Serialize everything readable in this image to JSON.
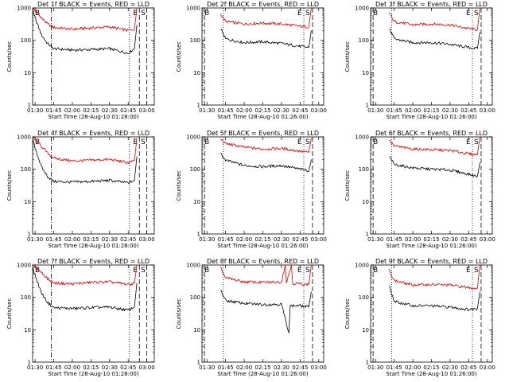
{
  "colors": {
    "events": "#000000",
    "lld": "#e00000"
  },
  "chart_data": [
    {
      "type": "line",
      "title": "Det 1f BLACK = Events, RED = LLD",
      "ylabel": "Counts/sec",
      "xlabel": "Start Time (28-Aug-10 01:28:00)",
      "x_ticks": [
        "01:30",
        "01:45",
        "02:00",
        "02:15",
        "02:30",
        "02:45",
        "03:00"
      ],
      "y_ticks": [
        "1",
        "10",
        "100",
        "1000"
      ],
      "x_range": [
        "01:28",
        "03:06"
      ],
      "y_range": [
        1,
        1000
      ],
      "y_scale": "log",
      "markers": [
        "B",
        "E",
        "S"
      ],
      "vlines": [
        {
          "t": "01:43",
          "style": "dash-dot"
        },
        {
          "t": "02:46",
          "style": "dotted"
        },
        {
          "t": "02:54",
          "style": "dashed"
        },
        {
          "t": "03:00",
          "style": "dashed"
        }
      ],
      "series": [
        {
          "key": "lld",
          "x": [
            "01:28",
            "01:35",
            "01:40",
            "01:45",
            "02:00",
            "02:15",
            "02:30",
            "02:45",
            "02:50",
            "02:52"
          ],
          "y": [
            1000,
            500,
            320,
            250,
            220,
            240,
            260,
            200,
            220,
            1000
          ]
        },
        {
          "key": "events",
          "x": [
            "01:28",
            "01:35",
            "01:40",
            "01:45",
            "02:00",
            "02:15",
            "02:30",
            "02:45",
            "02:50",
            "02:52"
          ],
          "y": [
            800,
            150,
            80,
            55,
            50,
            52,
            55,
            40,
            55,
            300
          ]
        }
      ]
    },
    {
      "type": "line",
      "title": "Det 2f BLACK = Events, RED = LLD",
      "ylabel": "Counts/sec",
      "xlabel": "Start Time (28-Aug-10 01:26:00)",
      "x_ticks": [
        "01:30",
        "01:45",
        "02:00",
        "02:15",
        "02:30",
        "02:45",
        "03:00"
      ],
      "y_ticks": [
        "1",
        "10",
        "100",
        "1000"
      ],
      "x_range": [
        "01:26",
        "03:04"
      ],
      "y_range": [
        1,
        1000
      ],
      "y_scale": "log",
      "markers": [
        "B",
        "E",
        "S"
      ],
      "vlines": [
        {
          "t": "01:28",
          "style": "dashed"
        },
        {
          "t": "01:43",
          "style": "dotted"
        },
        {
          "t": "02:48",
          "style": "dotted"
        },
        {
          "t": "02:55",
          "style": "dashed"
        }
      ],
      "series": [
        {
          "key": "lld",
          "x": [
            "01:41",
            "01:45",
            "02:00",
            "02:15",
            "02:30",
            "02:45",
            "02:52",
            "02:54"
          ],
          "y": [
            650,
            380,
            320,
            340,
            320,
            270,
            260,
            1000
          ]
        },
        {
          "key": "events",
          "x": [
            "01:41",
            "01:45",
            "02:00",
            "02:15",
            "02:30",
            "02:45",
            "02:52",
            "02:54"
          ],
          "y": [
            230,
            110,
            85,
            90,
            80,
            65,
            60,
            200
          ]
        }
      ]
    },
    {
      "type": "line",
      "title": "Det 3f BLACK = Events, RED = LLD",
      "ylabel": "Counts/sec",
      "xlabel": "Start Time (28-Aug-10 01:26:00)",
      "x_ticks": [
        "01:30",
        "01:45",
        "02:00",
        "02:15",
        "02:30",
        "02:45",
        "03:00"
      ],
      "y_ticks": [
        "1",
        "10",
        "100",
        "1000"
      ],
      "x_range": [
        "01:26",
        "03:04"
      ],
      "y_range": [
        1,
        1000
      ],
      "y_scale": "log",
      "markers": [
        "B",
        "E",
        "S"
      ],
      "vlines": [
        {
          "t": "01:28",
          "style": "dashed"
        },
        {
          "t": "01:43",
          "style": "dotted"
        },
        {
          "t": "02:48",
          "style": "dotted"
        },
        {
          "t": "02:55",
          "style": "dashed"
        }
      ],
      "series": [
        {
          "key": "lld",
          "x": [
            "01:41",
            "01:45",
            "02:00",
            "02:15",
            "02:30",
            "02:45",
            "02:52",
            "02:54"
          ],
          "y": [
            700,
            380,
            300,
            320,
            300,
            230,
            210,
            1000
          ]
        },
        {
          "key": "events",
          "x": [
            "01:41",
            "01:45",
            "02:00",
            "02:15",
            "02:30",
            "02:45",
            "02:52",
            "02:54"
          ],
          "y": [
            230,
            110,
            85,
            85,
            75,
            60,
            55,
            180
          ]
        }
      ]
    },
    {
      "type": "line",
      "title": "Det 4f BLACK = Events, RED = LLD",
      "ylabel": "Counts/sec",
      "xlabel": "Start Time (28-Aug-10 01:28:00)",
      "x_ticks": [
        "01:30",
        "01:45",
        "02:00",
        "02:15",
        "02:30",
        "02:45",
        "03:00"
      ],
      "y_ticks": [
        "1",
        "10",
        "100",
        "1000"
      ],
      "x_range": [
        "01:28",
        "03:06"
      ],
      "y_range": [
        1,
        1000
      ],
      "y_scale": "log",
      "markers": [
        "B",
        "E",
        "S"
      ],
      "vlines": [
        {
          "t": "01:43",
          "style": "dash-dot"
        },
        {
          "t": "02:46",
          "style": "dotted"
        },
        {
          "t": "02:54",
          "style": "dashed"
        },
        {
          "t": "03:00",
          "style": "dashed"
        }
      ],
      "series": [
        {
          "key": "lld",
          "x": [
            "01:28",
            "01:35",
            "01:40",
            "01:45",
            "02:00",
            "02:15",
            "02:30",
            "02:45",
            "02:50",
            "02:52"
          ],
          "y": [
            1000,
            520,
            320,
            220,
            180,
            190,
            200,
            160,
            180,
            900
          ]
        },
        {
          "key": "events",
          "x": [
            "01:28",
            "01:35",
            "01:40",
            "01:45",
            "02:00",
            "02:15",
            "02:30",
            "02:45",
            "02:50",
            "02:52"
          ],
          "y": [
            800,
            120,
            60,
            42,
            40,
            42,
            45,
            38,
            45,
            250
          ]
        }
      ]
    },
    {
      "type": "line",
      "title": "Det 5f BLACK = Events, RED = LLD",
      "ylabel": "Counts/sec",
      "xlabel": "Start Time (28-Aug-10 01:26:00)",
      "x_ticks": [
        "01:30",
        "01:45",
        "02:00",
        "02:15",
        "02:30",
        "02:45",
        "03:00"
      ],
      "y_ticks": [
        "1",
        "10",
        "100",
        "1000"
      ],
      "x_range": [
        "01:26",
        "03:04"
      ],
      "y_range": [
        1,
        1000
      ],
      "y_scale": "log",
      "markers": [
        "B",
        "E",
        "S"
      ],
      "vlines": [
        {
          "t": "01:28",
          "style": "dashed"
        },
        {
          "t": "01:43",
          "style": "dotted"
        },
        {
          "t": "02:48",
          "style": "dotted"
        },
        {
          "t": "02:55",
          "style": "dashed"
        }
      ],
      "series": [
        {
          "key": "lld",
          "x": [
            "01:41",
            "01:45",
            "02:00",
            "02:15",
            "02:30",
            "02:45",
            "02:52",
            "02:54"
          ],
          "y": [
            850,
            620,
            480,
            420,
            440,
            360,
            330,
            900
          ]
        },
        {
          "key": "events",
          "x": [
            "01:41",
            "01:45",
            "02:00",
            "02:15",
            "02:30",
            "02:45",
            "02:52",
            "02:54"
          ],
          "y": [
            300,
            190,
            130,
            120,
            130,
            100,
            90,
            200
          ]
        }
      ]
    },
    {
      "type": "line",
      "title": "Det 6f BLACK = Events, RED = LLD",
      "ylabel": "Counts/sec",
      "xlabel": "Start Time (28-Aug-10 01:26:00)",
      "x_ticks": [
        "01:30",
        "01:45",
        "02:00",
        "02:15",
        "02:30",
        "02:45",
        "03:00"
      ],
      "y_ticks": [
        "1",
        "10",
        "100",
        "1000"
      ],
      "x_range": [
        "01:26",
        "03:04"
      ],
      "y_range": [
        1,
        1000
      ],
      "y_scale": "log",
      "markers": [
        "B",
        "E",
        "S"
      ],
      "vlines": [
        {
          "t": "01:28",
          "style": "dashed"
        },
        {
          "t": "01:43",
          "style": "dotted"
        },
        {
          "t": "02:48",
          "style": "dotted"
        },
        {
          "t": "02:55",
          "style": "dashed"
        }
      ],
      "series": [
        {
          "key": "lld",
          "x": [
            "01:41",
            "01:45",
            "02:00",
            "02:15",
            "02:30",
            "02:45",
            "02:52",
            "02:54"
          ],
          "y": [
            800,
            520,
            420,
            400,
            380,
            300,
            280,
            1000
          ]
        },
        {
          "key": "events",
          "x": [
            "01:41",
            "01:45",
            "02:00",
            "02:15",
            "02:30",
            "02:45",
            "02:52",
            "02:54"
          ],
          "y": [
            250,
            140,
            110,
            100,
            95,
            70,
            60,
            160
          ]
        }
      ]
    },
    {
      "type": "line",
      "title": "Det 7f BLACK = Events, RED = LLD",
      "ylabel": "Counts/sec",
      "xlabel": "Start Time (28-Aug-10 01:28:00)",
      "x_ticks": [
        "01:30",
        "01:45",
        "02:00",
        "02:15",
        "02:30",
        "02:45",
        "03:00"
      ],
      "y_ticks": [
        "1",
        "10",
        "100",
        "1000"
      ],
      "x_range": [
        "01:28",
        "03:06"
      ],
      "y_range": [
        1,
        1000
      ],
      "y_scale": "log",
      "markers": [
        "B",
        "E",
        "S"
      ],
      "vlines": [
        {
          "t": "01:43",
          "style": "dash-dot"
        },
        {
          "t": "02:46",
          "style": "dotted"
        },
        {
          "t": "02:54",
          "style": "dashed"
        },
        {
          "t": "03:00",
          "style": "dashed"
        }
      ],
      "series": [
        {
          "key": "lld",
          "x": [
            "01:28",
            "01:35",
            "01:40",
            "01:45",
            "02:00",
            "02:15",
            "02:30",
            "02:45",
            "02:50",
            "02:52"
          ],
          "y": [
            1000,
            600,
            380,
            280,
            260,
            290,
            300,
            250,
            270,
            1000
          ]
        },
        {
          "key": "events",
          "x": [
            "01:28",
            "01:35",
            "01:40",
            "01:45",
            "02:00",
            "02:15",
            "02:30",
            "02:45",
            "02:50",
            "02:52"
          ],
          "y": [
            800,
            140,
            70,
            48,
            45,
            48,
            50,
            40,
            50,
            280
          ]
        }
      ]
    },
    {
      "type": "line",
      "title": "Det 8f BLACK = Events, RED = LLD",
      "ylabel": "Counts/sec",
      "xlabel": "Start Time (28-Aug-10 01:26:00)",
      "x_ticks": [
        "01:30",
        "01:45",
        "02:00",
        "02:15",
        "02:30",
        "02:45",
        "03:00"
      ],
      "y_ticks": [
        "1",
        "10",
        "100",
        "1000"
      ],
      "x_range": [
        "01:26",
        "03:04"
      ],
      "y_range": [
        1,
        1000
      ],
      "y_scale": "log",
      "markers": [
        "B",
        "E",
        "S"
      ],
      "vlines": [
        {
          "t": "01:28",
          "style": "dashed"
        },
        {
          "t": "01:43",
          "style": "dotted"
        },
        {
          "t": "02:48",
          "style": "dotted"
        },
        {
          "t": "02:55",
          "style": "dashed"
        }
      ],
      "series": [
        {
          "key": "lld",
          "x": [
            "01:41",
            "01:45",
            "02:00",
            "02:15",
            "02:30",
            "02:33",
            "02:34",
            "02:38",
            "02:39",
            "02:45",
            "02:52",
            "02:54"
          ],
          "y": [
            800,
            400,
            300,
            290,
            300,
            1000,
            280,
            1000,
            270,
            260,
            250,
            1000
          ]
        },
        {
          "key": "events",
          "x": [
            "01:41",
            "01:45",
            "02:00",
            "02:15",
            "02:30",
            "02:36",
            "02:37",
            "02:45",
            "02:52",
            "02:54"
          ],
          "y": [
            170,
            80,
            65,
            60,
            62,
            8,
            55,
            55,
            50,
            150
          ]
        }
      ]
    },
    {
      "type": "line",
      "title": "Det 9f BLACK = Events, RED = LLD",
      "ylabel": "Counts/sec",
      "xlabel": "Start Time (28-Aug-10 01:26:00)",
      "x_ticks": [
        "01:30",
        "01:45",
        "02:00",
        "02:15",
        "02:30",
        "02:45",
        "03:00"
      ],
      "y_ticks": [
        "1",
        "10",
        "100",
        "1000"
      ],
      "x_range": [
        "01:26",
        "03:04"
      ],
      "y_range": [
        1,
        1000
      ],
      "y_scale": "log",
      "markers": [
        "B",
        "E",
        "S"
      ],
      "vlines": [
        {
          "t": "01:28",
          "style": "dashed"
        },
        {
          "t": "01:43",
          "style": "dotted"
        },
        {
          "t": "02:48",
          "style": "dotted"
        },
        {
          "t": "02:55",
          "style": "dashed"
        }
      ],
      "series": [
        {
          "key": "lld",
          "x": [
            "01:41",
            "01:45",
            "02:00",
            "02:15",
            "02:30",
            "02:45",
            "02:52",
            "02:54"
          ],
          "y": [
            700,
            330,
            240,
            250,
            240,
            200,
            190,
            1000
          ]
        },
        {
          "key": "events",
          "x": [
            "01:41",
            "01:45",
            "02:00",
            "02:15",
            "02:30",
            "02:45",
            "02:52",
            "02:54"
          ],
          "y": [
            220,
            75,
            55,
            55,
            50,
            42,
            45,
            150
          ]
        }
      ]
    }
  ]
}
